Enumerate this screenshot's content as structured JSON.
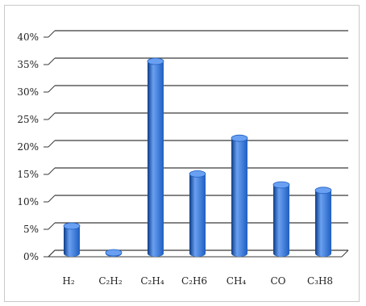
{
  "chart_data": {
    "type": "bar",
    "title": "",
    "xlabel": "",
    "ylabel": "",
    "categories": [
      "H₂",
      "C₂H₂",
      "C₂H₄",
      "C₂H6",
      "CH₄",
      "CO",
      "C₃H8"
    ],
    "values": [
      5,
      0.1,
      35,
      14.5,
      21,
      12.5,
      11.5
    ],
    "ylim": [
      0,
      40
    ],
    "yticks": [
      "0%",
      "5%",
      "10%",
      "15%",
      "20%",
      "25%",
      "30%",
      "35%",
      "40%"
    ],
    "grid": true,
    "legend": "none",
    "style": "3d-cylinder",
    "colors": {
      "bar": "#1f5fc0",
      "bar_light": "#6aa0f2",
      "bar_dark": "#0c3b86",
      "grid": "#3a3a3a",
      "frame": "#c9c9c9"
    }
  }
}
